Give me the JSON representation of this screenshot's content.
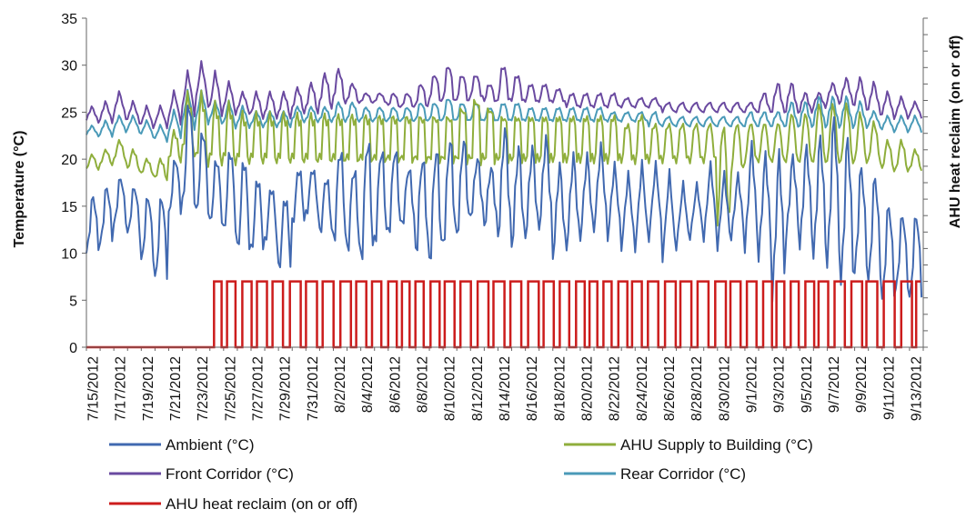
{
  "chart_data": {
    "type": "line",
    "xlabel": "",
    "ylabel": "Temperature (°C)",
    "y2label": "AHU heat reclaim (on or off)",
    "ylim": [
      0,
      35
    ],
    "yticks": [
      0,
      5,
      10,
      15,
      20,
      25,
      30,
      35
    ],
    "x_start": "7/15/2012",
    "x_end": "9/14/2012",
    "x_tick_labels": [
      "7/15/2012",
      "7/17/2012",
      "7/19/2012",
      "7/21/2012",
      "7/23/2012",
      "7/25/2012",
      "7/27/2012",
      "7/29/2012",
      "7/31/2012",
      "8/2/2012",
      "8/4/2012",
      "8/6/2012",
      "8/8/2012",
      "8/10/2012",
      "8/12/2012",
      "8/14/2012",
      "8/16/2012",
      "8/18/2012",
      "8/20/2012",
      "8/22/2012",
      "8/24/2012",
      "8/26/2012",
      "8/28/2012",
      "8/30/2012",
      "9/1/2012",
      "9/3/2012",
      "9/5/2012",
      "9/7/2012",
      "9/9/2012",
      "9/11/2012",
      "9/13/2012"
    ],
    "grid": false,
    "legend_placement": "bottom",
    "series": [
      {
        "name": "Ambient (°C)",
        "color": "#4169b0",
        "daily_min": [
          10,
          11,
          13,
          12,
          9,
          7,
          14,
          15,
          14,
          13,
          12,
          10,
          10,
          11,
          8,
          13,
          14,
          12,
          11,
          10,
          9,
          11,
          12,
          13,
          10,
          9,
          11,
          12,
          14,
          13,
          12,
          11,
          12,
          13,
          10,
          11,
          12,
          13,
          12,
          11,
          11,
          12,
          10,
          11,
          12,
          12,
          11,
          12,
          11,
          10,
          6,
          12,
          11,
          10,
          9,
          7,
          8,
          7,
          5,
          6,
          5
        ],
        "daily_max": [
          16,
          17,
          18,
          17,
          16,
          16,
          20,
          26,
          23,
          20,
          21,
          20,
          18,
          17,
          16,
          19,
          19,
          18,
          21,
          19,
          22,
          21,
          21,
          19,
          20,
          21,
          22,
          22,
          20,
          19,
          23,
          21,
          21,
          22,
          19,
          20,
          20,
          21,
          19,
          18,
          19,
          19,
          18,
          17,
          17,
          19,
          18,
          18,
          21,
          20,
          20,
          20,
          21,
          22,
          24,
          22,
          19,
          18,
          15,
          14,
          14
        ]
      },
      {
        "name": "AHU Supply to Building (°C)",
        "color": "#8fae3c",
        "daily_min": [
          19,
          19.5,
          20,
          19,
          18.5,
          18,
          20,
          21,
          20,
          20,
          20,
          20,
          20,
          20,
          20,
          20,
          20,
          20,
          20,
          20,
          20,
          20,
          20,
          20,
          20,
          20,
          20,
          20,
          20,
          20,
          20,
          20,
          20,
          20,
          20,
          20,
          20,
          20,
          20,
          20,
          20,
          20,
          20,
          20,
          20,
          20,
          14,
          19,
          20,
          20,
          20,
          20,
          20,
          20,
          20,
          20,
          20,
          20,
          19,
          19,
          19
        ],
        "daily_max": [
          20.5,
          21,
          22,
          21,
          20,
          20,
          23,
          27,
          27,
          26,
          26,
          25,
          25,
          25,
          25,
          25,
          25,
          25,
          25,
          25,
          25,
          25,
          25,
          25,
          25,
          25,
          25,
          26,
          27,
          26,
          25,
          25,
          25,
          25,
          25,
          25,
          25,
          25,
          25,
          24,
          25,
          24,
          24,
          24,
          24,
          24,
          24,
          24,
          24,
          24,
          24,
          25,
          25,
          26,
          26,
          26,
          25,
          24,
          22,
          22,
          21
        ]
      },
      {
        "name": "Front Corridor (°C)",
        "color": "#6a4aa0",
        "daily_min": [
          24,
          24,
          24.5,
          24,
          23.5,
          23.5,
          24,
          25,
          26,
          25,
          25,
          25,
          24.5,
          24.5,
          24.5,
          25,
          25,
          25.5,
          26,
          26,
          26,
          26,
          25.5,
          25.5,
          25.5,
          26,
          26,
          26,
          26.5,
          26,
          26,
          26,
          26,
          26,
          26,
          25.5,
          25.5,
          25.5,
          25.5,
          25.5,
          25.5,
          25.5,
          25,
          25,
          25,
          25,
          25,
          25,
          25,
          25,
          25,
          25,
          25,
          25.5,
          26,
          26,
          25.5,
          25,
          24.5,
          24.5,
          24.5
        ],
        "daily_max": [
          25.5,
          26,
          27,
          26,
          25.5,
          25.5,
          27,
          29,
          30,
          29,
          28,
          27,
          27,
          27,
          27,
          27.5,
          28,
          29,
          29.5,
          28,
          27,
          27,
          27,
          27,
          28,
          29,
          30,
          29,
          29,
          28,
          30,
          29,
          28,
          28,
          27.5,
          27,
          27,
          27,
          27,
          26.5,
          26.5,
          26.5,
          26,
          26,
          26,
          26,
          26,
          26,
          26,
          27,
          28,
          28,
          27,
          27,
          28,
          28.5,
          28.5,
          28,
          27,
          26.5,
          26
        ]
      },
      {
        "name": "Rear Corridor (°C)",
        "color": "#4a9ab8",
        "daily_min": [
          22.5,
          22.5,
          23,
          23,
          22.5,
          22,
          22.5,
          23.5,
          24,
          24,
          23.5,
          23.5,
          23.5,
          23.5,
          23.5,
          24,
          24,
          24,
          24,
          24,
          24,
          24,
          24,
          24,
          24,
          24,
          24,
          24,
          24,
          24,
          24,
          24,
          24,
          24,
          24,
          24,
          24,
          24,
          24,
          24,
          24,
          23.5,
          23.5,
          23.5,
          23.5,
          23.5,
          23.5,
          23.5,
          23.5,
          23.5,
          23.5,
          23.5,
          23.5,
          23.5,
          23.5,
          23.5,
          23.5,
          23.5,
          23,
          23,
          23
        ],
        "daily_max": [
          23.5,
          24,
          24.5,
          24.5,
          24,
          23.5,
          25,
          27,
          27,
          26,
          26,
          25.5,
          25,
          25,
          25,
          25.5,
          25.5,
          25.5,
          26,
          26,
          25.5,
          25.5,
          25.5,
          25.5,
          26,
          26,
          26.5,
          26,
          26,
          25.5,
          26,
          26,
          25.5,
          25.5,
          25.5,
          25.5,
          25.5,
          25.5,
          25,
          25,
          25,
          25,
          24.5,
          24.5,
          24.5,
          24.5,
          24.5,
          24.5,
          25,
          25,
          25,
          26,
          26,
          26.5,
          26.5,
          26.5,
          26,
          25,
          24.5,
          24.5,
          24.5
        ]
      },
      {
        "name": "AHU heat reclaim (on or off)",
        "color": "#cc1c1c",
        "axis": "right",
        "off_value": 0,
        "on_value": 7,
        "on_from": "7/24/2012",
        "pattern": "cycles on/off daily"
      }
    ]
  }
}
